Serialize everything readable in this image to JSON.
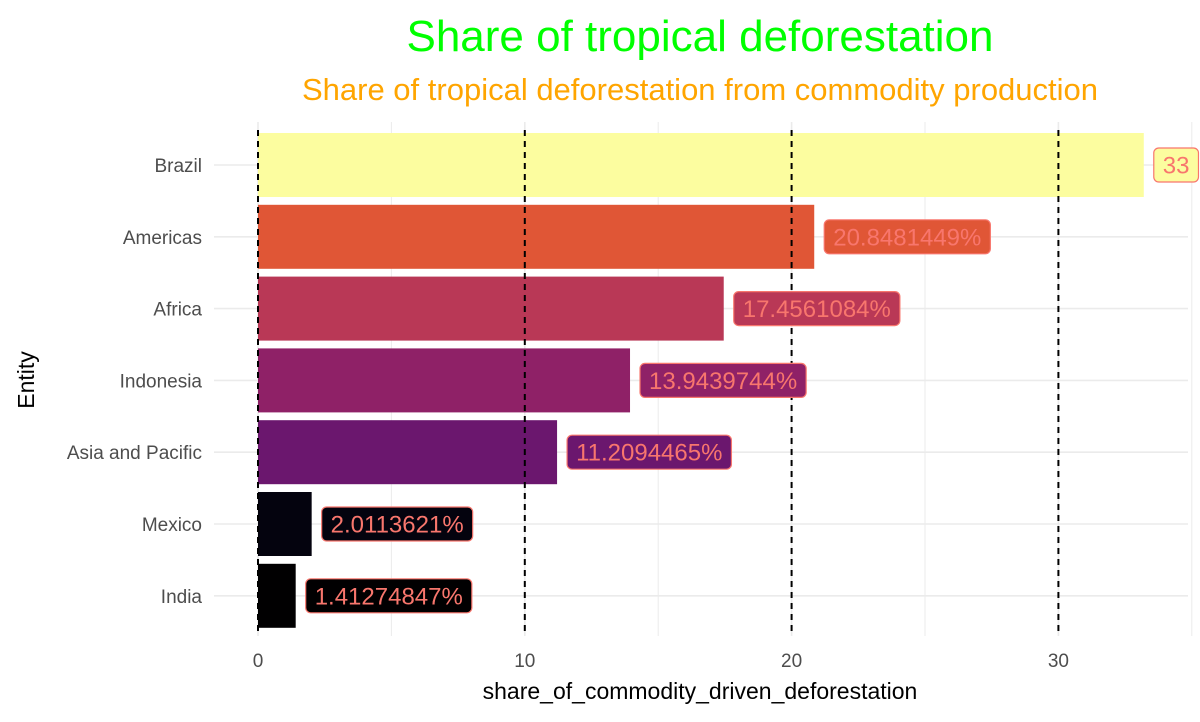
{
  "chart_data": {
    "type": "bar",
    "orientation": "horizontal",
    "title": "Share of tropical deforestation",
    "subtitle": "Share of tropical deforestation from commodity production",
    "xlabel": "share_of_commodity_driven_deforestation",
    "ylabel": "Entity",
    "xlim": [
      0,
      35
    ],
    "x_ticks": [
      0,
      10,
      20,
      30
    ],
    "x_tick_labels": [
      "0",
      "10",
      "20",
      "30"
    ],
    "vertical_reference_lines": [
      0,
      10,
      20,
      30
    ],
    "grid": true,
    "legend": "none",
    "categories": [
      "Brazil",
      "Americas",
      "Africa",
      "Indonesia",
      "Asia and Pacific",
      "Mexico",
      "India"
    ],
    "values": [
      33.2,
      20.8481449,
      17.4561084,
      13.9439744,
      11.2094465,
      2.0113621,
      1.41274847
    ],
    "data_labels": [
      "33",
      "20.8481449%",
      "17.4561084%",
      "13.9439744%",
      "11.2094465%",
      "2.0113621%",
      "1.41274847%"
    ],
    "bar_colors": [
      "#fcfd9f",
      "#e05636",
      "#b93856",
      "#8f2167",
      "#6b176e",
      "#04030e",
      "#010001"
    ],
    "label_text_color": "#f8766d",
    "title_color": "#00ff00",
    "subtitle_color": "#ffa500"
  }
}
